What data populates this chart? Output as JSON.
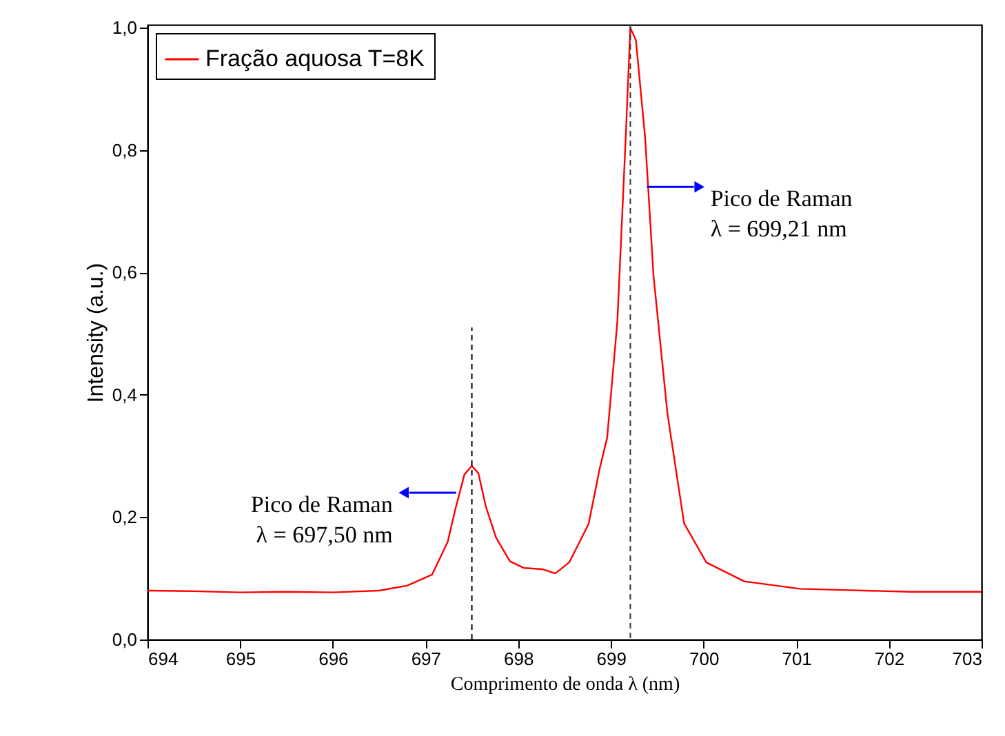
{
  "chart_data": {
    "type": "line",
    "xlabel": "Comprimento de onda λ (nm)",
    "ylabel": "Intensity (a.u.)",
    "x": [
      694.0,
      694.5,
      695.0,
      695.5,
      696.0,
      696.5,
      696.8,
      697.07,
      697.24,
      697.32,
      697.42,
      697.5,
      697.57,
      697.65,
      697.76,
      697.91,
      698.06,
      698.26,
      698.4,
      698.55,
      698.76,
      698.88,
      698.96,
      699.07,
      699.16,
      699.21,
      699.27,
      699.37,
      699.46,
      699.61,
      699.79,
      700.03,
      700.44,
      701.04,
      701.5,
      702.23,
      703.0
    ],
    "series": [
      {
        "name": "Fração aquosa T=8K",
        "color": "#ff0000",
        "values": [
          0.08,
          0.079,
          0.077,
          0.078,
          0.077,
          0.08,
          0.088,
          0.106,
          0.16,
          0.212,
          0.27,
          0.284,
          0.272,
          0.218,
          0.167,
          0.128,
          0.117,
          0.115,
          0.108,
          0.126,
          0.189,
          0.28,
          0.33,
          0.52,
          0.82,
          1.0,
          0.98,
          0.82,
          0.595,
          0.37,
          0.19,
          0.126,
          0.095,
          0.083,
          0.081,
          0.078,
          0.078
        ]
      },
      {
        "type": "line",
        "color": "#000000",
        "line_style": "dashed",
        "x": [
          697.5,
          697.5
        ],
        "values": [
          0,
          0.51
        ]
      }
    ],
    "ref_lines": [
      {
        "axis": "x",
        "value": 699.21,
        "color": "#333333",
        "line_style": "dashed"
      }
    ],
    "annotations": [
      {
        "text": "Pico de Raman\nλ = 697,50 nm",
        "x": 697.33,
        "y": 0.24
      },
      {
        "text": "Pico de Raman\nλ = 699,21 nm",
        "x": 699.39,
        "y": 0.74
      }
    ],
    "xlim": [
      694,
      703
    ],
    "xticks": [
      694,
      695,
      696,
      697,
      698,
      699,
      700,
      701,
      702,
      703
    ],
    "ylim": [
      0,
      1.005
    ],
    "yticks": [
      {
        "value": 0,
        "label": "0,0"
      },
      {
        "value": 0.2,
        "label": "0,2"
      },
      {
        "value": 0.4,
        "label": "0,4"
      },
      {
        "value": 0.6,
        "label": "0,6"
      },
      {
        "value": 0.8,
        "label": "0,8"
      },
      {
        "value": 1.0,
        "label": "1,0"
      }
    ],
    "grid": false,
    "legend": "top left",
    "line_style": "solid",
    "marker": "none"
  }
}
